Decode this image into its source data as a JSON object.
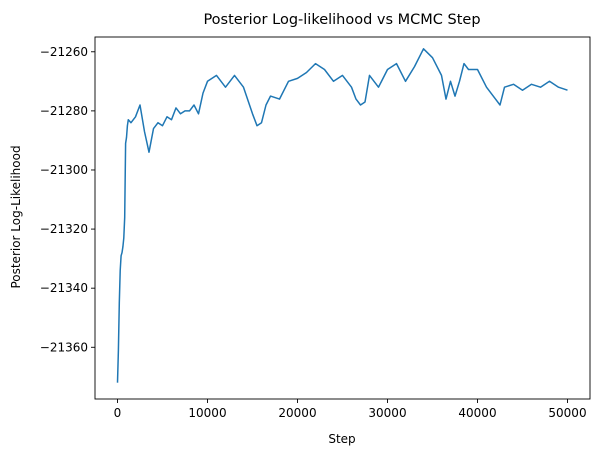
{
  "chart_data": {
    "type": "line",
    "title": "Posterior Log-likelihood vs MCMC Step",
    "xlabel": "Step",
    "ylabel": "Posterior Log-Likelihood",
    "xlim": [
      -2500,
      52500
    ],
    "ylim": [
      -21377.5,
      -21255.0
    ],
    "xticks": [
      0,
      10000,
      20000,
      30000,
      40000,
      50000
    ],
    "xtick_labels": [
      "0",
      "10000",
      "20000",
      "30000",
      "40000",
      "50000"
    ],
    "yticks": [
      -21360,
      -21340,
      -21320,
      -21300,
      -21280,
      -21260
    ],
    "ytick_labels": [
      "−21360",
      "−21340",
      "−21320",
      "−21300",
      "−21280",
      "−21260"
    ],
    "grid": false,
    "legend": "none",
    "series": [
      {
        "color": "#1f77b4",
        "x": [
          0,
          100,
          200,
          300,
          400,
          500,
          600,
          700,
          800,
          900,
          1000,
          1100,
          1200,
          1500,
          2000,
          2500,
          3000,
          3500,
          4000,
          4500,
          5000,
          5500,
          6000,
          6500,
          7000,
          7500,
          8000,
          8500,
          9000,
          9500,
          10000,
          11000,
          12000,
          13000,
          14000,
          15000,
          15500,
          16000,
          16500,
          17000,
          18000,
          19000,
          20000,
          21000,
          22000,
          23000,
          24000,
          25000,
          26000,
          26500,
          27000,
          27500,
          28000,
          29000,
          30000,
          31000,
          32000,
          33000,
          34000,
          35000,
          36000,
          36500,
          37000,
          37500,
          38000,
          38500,
          39000,
          40000,
          41000,
          42000,
          42500,
          43000,
          44000,
          45000,
          46000,
          47000,
          48000,
          49000,
          50000
        ],
        "y": [
          -21372,
          -21361,
          -21345,
          -21334,
          -21329,
          -21328,
          -21326,
          -21323,
          -21316,
          -21291,
          -21289,
          -21285,
          -21283,
          -21284,
          -21282,
          -21278,
          -21287,
          -21294,
          -21286,
          -21284,
          -21285,
          -21282,
          -21283,
          -21279,
          -21281,
          -21280,
          -21280,
          -21278,
          -21281,
          -21274,
          -21270,
          -21268,
          -21272,
          -21268,
          -21272,
          -21281,
          -21285,
          -21284,
          -21278,
          -21275,
          -21276,
          -21270,
          -21269,
          -21267,
          -21264,
          -21266,
          -21270,
          -21268,
          -21272,
          -21276,
          -21278,
          -21277,
          -21268,
          -21272,
          -21266,
          -21264,
          -21270,
          -21265,
          -21259,
          -21262,
          -21268,
          -21276,
          -21270,
          -21275,
          -21270,
          -21264,
          -21266,
          -21266,
          -21272,
          -21276,
          -21278,
          -21272,
          -21271,
          -21273,
          -21271,
          -21272,
          -21270,
          -21272,
          -21273
        ]
      }
    ]
  }
}
